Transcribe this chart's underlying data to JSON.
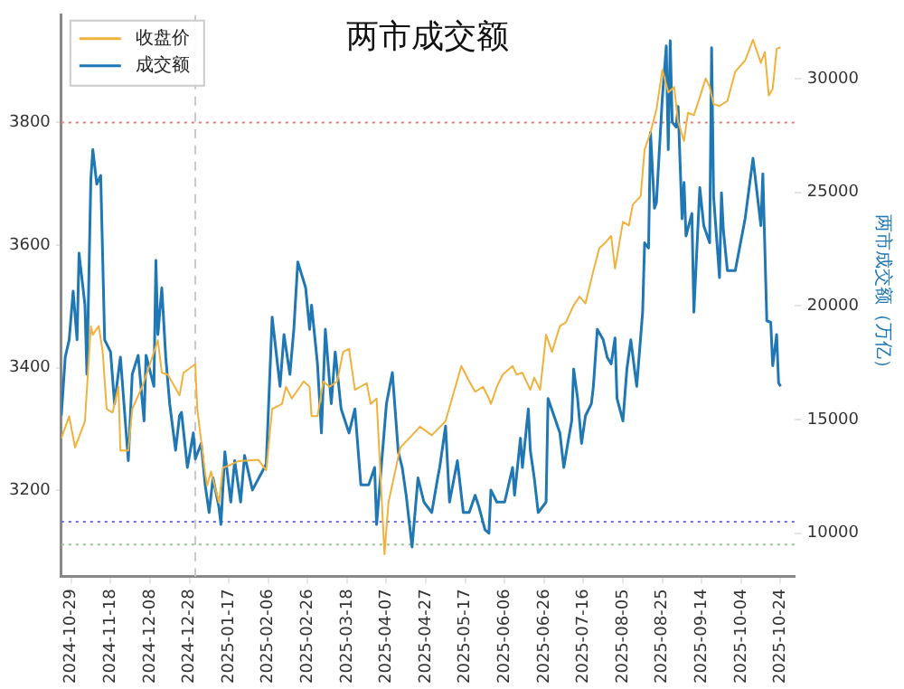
{
  "chart_data": {
    "type": "line",
    "title": "两市成交额",
    "y2label": "两市成交额（万亿）",
    "legend": "top left",
    "grid": false,
    "marker": "none",
    "line_style": "solid",
    "xlim": [
      "2024-10-24",
      "2025-10-31"
    ],
    "xticks": [
      "2024-10-29",
      "2024-11-18",
      "2024-12-08",
      "2024-12-28",
      "2025-01-17",
      "2025-02-06",
      "2025-02-26",
      "2025-03-18",
      "2025-04-07",
      "2025-04-27",
      "2025-05-17",
      "2025-06-06",
      "2025-06-26",
      "2025-07-16",
      "2025-08-05",
      "2025-08-25",
      "2025-09-14",
      "2025-10-04",
      "2025-10-24"
    ],
    "ylim": [
      3060,
      3975
    ],
    "yticks": [
      3200,
      3400,
      3600,
      3800
    ],
    "y2lim": [
      8100,
      32800
    ],
    "y2ticks": [
      10000,
      15000,
      20000,
      25000,
      30000
    ],
    "ref_lines": [
      {
        "axis": "y",
        "value": 3800,
        "color": "#e8797a",
        "line_style": "dotted"
      },
      {
        "axis": "y2",
        "value": 10500,
        "color": "#6f6fe8",
        "line_style": "dotted"
      },
      {
        "axis": "y2",
        "value": 9500,
        "color": "#8fc58f",
        "line_style": "dotted"
      },
      {
        "axis": "x",
        "value": "2024-12-31",
        "color": "#c8c8c8",
        "line_style": "dashed"
      }
    ],
    "series": [
      {
        "name": "收盘价",
        "color": "#f0b23c",
        "x": [
          "2024-10-24",
          "2024-10-28",
          "2024-10-31",
          "2024-11-05",
          "2024-11-08",
          "2024-11-09",
          "2024-11-12",
          "2024-11-14",
          "2024-11-16",
          "2024-11-19",
          "2024-11-22",
          "2024-11-23",
          "2024-11-27",
          "2024-11-29",
          "2024-12-04",
          "2024-12-08",
          "2024-12-12",
          "2024-12-14",
          "2024-12-17",
          "2024-12-19",
          "2024-12-23",
          "2024-12-25",
          "2024-12-31",
          "2025-01-01",
          "2025-01-05",
          "2025-01-06",
          "2025-01-08",
          "2025-01-12",
          "2025-01-14",
          "2025-01-18",
          "2025-01-22",
          "2025-02-01",
          "2025-02-05",
          "2025-02-08",
          "2025-02-13",
          "2025-02-15",
          "2025-02-18",
          "2025-02-21",
          "2025-02-24",
          "2025-02-27",
          "2025-02-28",
          "2025-03-03",
          "2025-03-06",
          "2025-03-09",
          "2025-03-13",
          "2025-03-16",
          "2025-03-19",
          "2025-03-22",
          "2025-03-28",
          "2025-03-30",
          "2025-04-02",
          "2025-04-06",
          "2025-04-08",
          "2025-04-14",
          "2025-04-20",
          "2025-04-24",
          "2025-04-30",
          "2025-05-07",
          "2025-05-15",
          "2025-05-19",
          "2025-05-22",
          "2025-05-26",
          "2025-05-29",
          "2025-05-30",
          "2025-06-02",
          "2025-06-05",
          "2025-06-10",
          "2025-06-12",
          "2025-06-15",
          "2025-06-17",
          "2025-06-19",
          "2025-06-21",
          "2025-06-24",
          "2025-06-27",
          "2025-06-30",
          "2025-07-04",
          "2025-07-07",
          "2025-07-11",
          "2025-07-14",
          "2025-07-17",
          "2025-07-21",
          "2025-07-24",
          "2025-07-27",
          "2025-07-30",
          "2025-08-01",
          "2025-08-05",
          "2025-08-08",
          "2025-08-10",
          "2025-08-14",
          "2025-08-16",
          "2025-08-19",
          "2025-08-22",
          "2025-08-25",
          "2025-08-28",
          "2025-08-31",
          "2025-09-02",
          "2025-09-05",
          "2025-09-07",
          "2025-09-10",
          "2025-09-13",
          "2025-09-16",
          "2025-09-18",
          "2025-09-20",
          "2025-09-23",
          "2025-09-27",
          "2025-10-01",
          "2025-10-06",
          "2025-10-10",
          "2025-10-14",
          "2025-10-16",
          "2025-10-18",
          "2025-10-20",
          "2025-10-22",
          "2025-10-24"
        ],
        "values": [
          3285,
          3321,
          3270,
          3313,
          3468,
          3454,
          3468,
          3426,
          3333,
          3327,
          3369,
          3265,
          3265,
          3333,
          3369,
          3406,
          3445,
          3392,
          3389,
          3378,
          3355,
          3392,
          3406,
          3333,
          3228,
          3208,
          3231,
          3180,
          3237,
          3242,
          3248,
          3250,
          3233,
          3333,
          3341,
          3369,
          3350,
          3364,
          3378,
          3369,
          3321,
          3321,
          3378,
          3369,
          3378,
          3426,
          3431,
          3364,
          3375,
          3341,
          3350,
          3096,
          3180,
          3270,
          3290,
          3304,
          3290,
          3313,
          3403,
          3378,
          3361,
          3369,
          3350,
          3341,
          3369,
          3389,
          3403,
          3389,
          3392,
          3378,
          3364,
          3384,
          3364,
          3454,
          3426,
          3468,
          3474,
          3502,
          3516,
          3505,
          3558,
          3595,
          3604,
          3615,
          3562,
          3638,
          3632,
          3666,
          3680,
          3756,
          3784,
          3821,
          3886,
          3849,
          3858,
          3801,
          3770,
          3816,
          3812,
          3841,
          3872,
          3858,
          3830,
          3827,
          3835,
          3883,
          3901,
          3935,
          3897,
          3915,
          3844,
          3855,
          3920,
          3923
        ]
      },
      {
        "name": "成交额",
        "color": "#1f77b4",
        "axis": "y2",
        "x": [
          "2024-10-24",
          "2024-10-26",
          "2024-10-28",
          "2024-10-30",
          "2024-11-01",
          "2024-11-02",
          "2024-11-05",
          "2024-11-06",
          "2024-11-08",
          "2024-11-09",
          "2024-11-11",
          "2024-11-13",
          "2024-11-15",
          "2024-11-18",
          "2024-11-20",
          "2024-11-23",
          "2024-11-27",
          "2024-11-29",
          "2024-12-02",
          "2024-12-05",
          "2024-12-06",
          "2024-12-10",
          "2024-12-11",
          "2024-12-12",
          "2024-12-14",
          "2024-12-16",
          "2024-12-18",
          "2024-12-21",
          "2024-12-23",
          "2024-12-24",
          "2024-12-27",
          "2024-12-30",
          "2024-12-31",
          "2025-01-03",
          "2025-01-05",
          "2025-01-07",
          "2025-01-09",
          "2025-01-12",
          "2025-01-13",
          "2025-01-15",
          "2025-01-18",
          "2025-01-20",
          "2025-01-23",
          "2025-01-25",
          "2025-01-29",
          "2025-02-05",
          "2025-02-08",
          "2025-02-12",
          "2025-02-14",
          "2025-02-17",
          "2025-02-19",
          "2025-02-21",
          "2025-02-25",
          "2025-02-27",
          "2025-02-28",
          "2025-03-03",
          "2025-03-05",
          "2025-03-07",
          "2025-03-10",
          "2025-03-12",
          "2025-03-15",
          "2025-03-19",
          "2025-03-22",
          "2025-03-25",
          "2025-03-29",
          "2025-04-01",
          "2025-04-02",
          "2025-04-07",
          "2025-04-10",
          "2025-04-13",
          "2025-04-15",
          "2025-04-17",
          "2025-04-20",
          "2025-04-23",
          "2025-04-26",
          "2025-04-30",
          "2025-05-03",
          "2025-05-04",
          "2025-05-07",
          "2025-05-09",
          "2025-05-13",
          "2025-05-16",
          "2025-05-19",
          "2025-05-22",
          "2025-05-24",
          "2025-05-27",
          "2025-05-29",
          "2025-05-30",
          "2025-06-02",
          "2025-06-06",
          "2025-06-10",
          "2025-06-11",
          "2025-06-14",
          "2025-06-15",
          "2025-06-18",
          "2025-06-19",
          "2025-06-21",
          "2025-06-23",
          "2025-06-27",
          "2025-06-28",
          "2025-07-01",
          "2025-07-04",
          "2025-07-06",
          "2025-07-08",
          "2025-07-10",
          "2025-07-11",
          "2025-07-13",
          "2025-07-15",
          "2025-07-17",
          "2025-07-20",
          "2025-07-21",
          "2025-07-23",
          "2025-07-26",
          "2025-07-28",
          "2025-07-30",
          "2025-08-01",
          "2025-08-02",
          "2025-08-05",
          "2025-08-07",
          "2025-08-09",
          "2025-08-12",
          "2025-08-15",
          "2025-08-16",
          "2025-08-18",
          "2025-08-19",
          "2025-08-21",
          "2025-08-22",
          "2025-08-23",
          "2025-08-25",
          "2025-08-27",
          "2025-08-28",
          "2025-08-29",
          "2025-08-30",
          "2025-09-01",
          "2025-09-02",
          "2025-09-04",
          "2025-09-05",
          "2025-09-06",
          "2025-09-09",
          "2025-09-10",
          "2025-09-13",
          "2025-09-15",
          "2025-09-18",
          "2025-09-19",
          "2025-09-20",
          "2025-09-23",
          "2025-09-24",
          "2025-09-25",
          "2025-09-27",
          "2025-10-01",
          "2025-10-06",
          "2025-10-10",
          "2025-10-14",
          "2025-10-15",
          "2025-10-17",
          "2025-10-19",
          "2025-10-20",
          "2025-10-22",
          "2025-10-23",
          "2025-10-24"
        ],
        "values": [
          15170,
          17750,
          18510,
          20650,
          18510,
          22320,
          20040,
          16990,
          25590,
          26880,
          25360,
          25740,
          18510,
          17980,
          15700,
          17750,
          13190,
          16990,
          17830,
          14940,
          17830,
          16460,
          22010,
          18740,
          20800,
          17750,
          15700,
          13650,
          15170,
          15320,
          12890,
          14410,
          13270,
          13950,
          12130,
          10910,
          12430,
          11140,
          10380,
          13580,
          11370,
          13190,
          11370,
          13420,
          11900,
          13040,
          19510,
          16460,
          18740,
          16990,
          18970,
          21940,
          20800,
          18970,
          20040,
          17450,
          14410,
          18970,
          15700,
          17980,
          15470,
          14410,
          15470,
          12130,
          12130,
          12890,
          10380,
          15700,
          17070,
          13580,
          12890,
          11670,
          9390,
          12430,
          11370,
          10910,
          12430,
          12890,
          14710,
          11370,
          13190,
          10910,
          10910,
          11670,
          11140,
          10150,
          10000,
          11900,
          11370,
          11370,
          12890,
          11670,
          14180,
          12890,
          15470,
          13650,
          12430,
          10910,
          11370,
          15930,
          15170,
          14410,
          12890,
          13950,
          14940,
          17220,
          15930,
          13950,
          15170,
          15700,
          16460,
          18970,
          18510,
          17750,
          17450,
          18590,
          15930,
          14940,
          17220,
          18510,
          16460,
          19730,
          22780,
          22550,
          27640,
          24300,
          24550,
          26120,
          29160,
          31450,
          26880,
          31680,
          28100,
          27870,
          28780,
          23840,
          25440,
          23080,
          24070,
          19730,
          25210,
          23540,
          22780,
          31370,
          24830,
          21250,
          24980,
          23310,
          21560,
          21560,
          23840,
          26500,
          23540,
          25820,
          19350,
          19280,
          17370,
          18740,
          16610,
          16460
        ]
      }
    ]
  }
}
